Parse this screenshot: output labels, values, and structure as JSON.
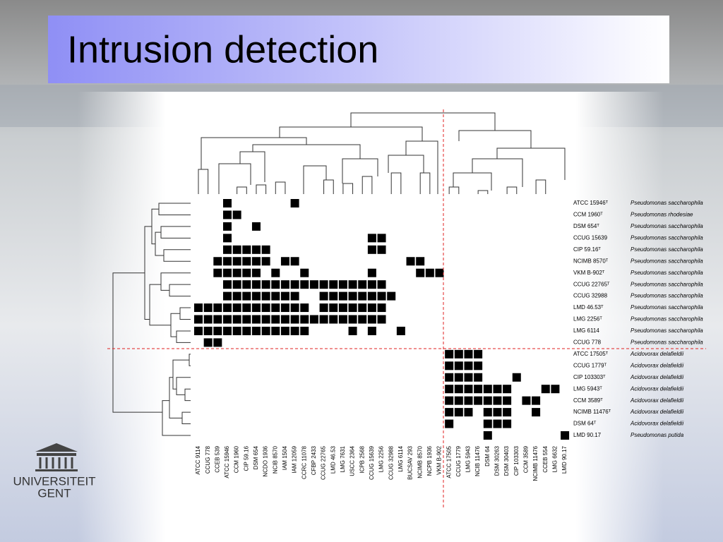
{
  "title": "Intrusion detection",
  "logo": [
    "UNIVERSITEIT",
    "GENT"
  ],
  "chart_data": {
    "type": "heatmap",
    "color": "#000000",
    "rows": [
      "ATCC 15946ᵀ",
      "CCM 1960ᵀ",
      "DSM 654ᵀ",
      "CCUG 15639",
      "CIP 59.16ᵀ",
      "NCIMB 8570ᵀ",
      "VKM B-902ᵀ",
      "CCUG 22765ᵀ",
      "CCUG 32988",
      "LMD 46.53ᵀ",
      "LMG 2256ᵀ",
      "LMG 6114",
      "CCUG 778",
      "ATCC 17505ᵀ",
      "CCUG 1779ᵀ",
      "CIP 103303ᵀ",
      "LMG 5943ᵀ",
      "CCM 3589ᵀ",
      "NCIMB 11476ᵀ",
      "DSM 64ᵀ",
      "LMD 90.17"
    ],
    "row_species": [
      "Pseudomonas saccharophila",
      "Pseudomonas rhodesiae",
      "Pseudomonas saccharophila",
      "Pseudomonas saccharophila",
      "Pseudomonas saccharophila",
      "Pseudomonas saccharophila",
      "Pseudomonas saccharophila",
      "Pseudomonas saccharophila",
      "Pseudomonas saccharophila",
      "Pseudomonas saccharophila",
      "Pseudomonas saccharophila",
      "Pseudomonas saccharophila",
      "Pseudomonas saccharophila",
      "Acidovorax delafieldii",
      "Acidovorax delafieldii",
      "Acidovorax delafieldii",
      "Acidovorax delafieldii",
      "Acidovorax delafieldii",
      "Acidovorax delafieldii",
      "Acidovorax delafieldii",
      "Pseudomonas putida"
    ],
    "columns": [
      "ATCC 9114",
      "CCUG 778",
      "CCEB 539",
      "ATCC 15946",
      "CCM 1960",
      "CIP 59.16",
      "DSM 654",
      "NCDO 1936",
      "NCIB 8570",
      "IAM 1504",
      "IAM 12059",
      "CCRC 11078",
      "CFBP 2433",
      "CCUG 22765",
      "LMD 46.53",
      "LMG 7631",
      "USCC 2364",
      "ICPB 2568",
      "CCUG 15639",
      "LMG 2256",
      "CCUG 32988",
      "LMG 6114",
      "BUCSAV 293",
      "NCIMB 8570",
      "NCPB 1936",
      "VKM B-902",
      "ATCC 17505",
      "CCUG 1779",
      "LMG 5943",
      "NCIB 11476",
      "DSM 64",
      "DSM 30263",
      "DSM 30403",
      "CIP 103303",
      "CCM 3589",
      "NCIMB 11476",
      "CCEB 554",
      "LMG 6632",
      "LMD 90.17"
    ],
    "values": [
      [
        0,
        0,
        0,
        1,
        0,
        0,
        0,
        0,
        0,
        0,
        1,
        0,
        0,
        0,
        0,
        0,
        0,
        0,
        0,
        0,
        0,
        0,
        0,
        0,
        0,
        0,
        0,
        0,
        0,
        0,
        0,
        0,
        0,
        0,
        0,
        0,
        0,
        0,
        0
      ],
      [
        0,
        0,
        0,
        1,
        1,
        0,
        0,
        0,
        0,
        0,
        0,
        0,
        0,
        0,
        0,
        0,
        0,
        0,
        0,
        0,
        0,
        0,
        0,
        0,
        0,
        0,
        0,
        0,
        0,
        0,
        0,
        0,
        0,
        0,
        0,
        0,
        0,
        0,
        0
      ],
      [
        0,
        0,
        0,
        1,
        0,
        0,
        1,
        0,
        0,
        0,
        0,
        0,
        0,
        0,
        0,
        0,
        0,
        0,
        0,
        0,
        0,
        0,
        0,
        0,
        0,
        0,
        0,
        0,
        0,
        0,
        0,
        0,
        0,
        0,
        0,
        0,
        0,
        0,
        0
      ],
      [
        0,
        0,
        0,
        1,
        0,
        0,
        0,
        0,
        0,
        0,
        0,
        0,
        0,
        0,
        0,
        0,
        0,
        0,
        1,
        1,
        0,
        0,
        0,
        0,
        0,
        0,
        0,
        0,
        0,
        0,
        0,
        0,
        0,
        0,
        0,
        0,
        0,
        0,
        0
      ],
      [
        0,
        0,
        0,
        1,
        1,
        1,
        1,
        1,
        0,
        0,
        0,
        0,
        0,
        0,
        0,
        0,
        0,
        0,
        1,
        1,
        0,
        0,
        0,
        0,
        0,
        0,
        0,
        0,
        0,
        0,
        0,
        0,
        0,
        0,
        0,
        0,
        0,
        0,
        0
      ],
      [
        0,
        0,
        1,
        1,
        1,
        1,
        1,
        1,
        0,
        1,
        1,
        0,
        0,
        0,
        0,
        0,
        0,
        0,
        0,
        0,
        0,
        0,
        1,
        1,
        0,
        0,
        0,
        0,
        0,
        0,
        0,
        0,
        0,
        0,
        0,
        0,
        0,
        0,
        0
      ],
      [
        0,
        0,
        1,
        1,
        1,
        1,
        1,
        0,
        1,
        0,
        0,
        1,
        0,
        0,
        0,
        0,
        0,
        0,
        1,
        0,
        0,
        0,
        0,
        1,
        1,
        1,
        0,
        0,
        0,
        0,
        0,
        0,
        0,
        0,
        0,
        0,
        0,
        0,
        0
      ],
      [
        0,
        0,
        0,
        1,
        1,
        1,
        1,
        1,
        1,
        1,
        1,
        1,
        1,
        1,
        1,
        1,
        1,
        1,
        1,
        1,
        0,
        0,
        0,
        0,
        0,
        0,
        0,
        0,
        0,
        0,
        0,
        0,
        0,
        0,
        0,
        0,
        0,
        0,
        0
      ],
      [
        0,
        0,
        0,
        1,
        1,
        1,
        1,
        1,
        1,
        1,
        1,
        0,
        0,
        1,
        1,
        1,
        1,
        1,
        1,
        1,
        1,
        0,
        0,
        0,
        0,
        0,
        0,
        0,
        0,
        0,
        0,
        0,
        0,
        0,
        0,
        0,
        0,
        0,
        0
      ],
      [
        1,
        1,
        1,
        1,
        1,
        1,
        1,
        1,
        1,
        1,
        1,
        1,
        0,
        1,
        1,
        1,
        1,
        1,
        1,
        1,
        0,
        0,
        0,
        0,
        0,
        0,
        0,
        0,
        0,
        0,
        0,
        0,
        0,
        0,
        0,
        0,
        0,
        0,
        0
      ],
      [
        1,
        1,
        1,
        1,
        1,
        1,
        1,
        1,
        1,
        1,
        1,
        1,
        1,
        1,
        1,
        1,
        1,
        1,
        1,
        1,
        0,
        0,
        0,
        0,
        0,
        0,
        0,
        0,
        0,
        0,
        0,
        0,
        0,
        0,
        0,
        0,
        0,
        0,
        0
      ],
      [
        1,
        1,
        1,
        1,
        1,
        1,
        1,
        1,
        1,
        1,
        1,
        1,
        0,
        0,
        0,
        0,
        1,
        0,
        1,
        0,
        0,
        1,
        0,
        0,
        0,
        0,
        0,
        0,
        0,
        0,
        0,
        0,
        0,
        0,
        0,
        0,
        0,
        0,
        0
      ],
      [
        0,
        1,
        1,
        0,
        0,
        0,
        0,
        0,
        0,
        0,
        0,
        0,
        0,
        0,
        0,
        0,
        0,
        0,
        0,
        0,
        0,
        0,
        0,
        0,
        0,
        0,
        0,
        0,
        0,
        0,
        0,
        0,
        0,
        0,
        0,
        0,
        0,
        0,
        0
      ],
      [
        0,
        0,
        0,
        0,
        0,
        0,
        0,
        0,
        0,
        0,
        0,
        0,
        0,
        0,
        0,
        0,
        0,
        0,
        0,
        0,
        0,
        0,
        0,
        0,
        0,
        0,
        1,
        1,
        1,
        1,
        0,
        0,
        0,
        0,
        0,
        0,
        0,
        0,
        0
      ],
      [
        0,
        0,
        0,
        0,
        0,
        0,
        0,
        0,
        0,
        0,
        0,
        0,
        0,
        0,
        0,
        0,
        0,
        0,
        0,
        0,
        0,
        0,
        0,
        0,
        0,
        0,
        1,
        1,
        1,
        1,
        0,
        0,
        0,
        0,
        0,
        0,
        0,
        0,
        0
      ],
      [
        0,
        0,
        0,
        0,
        0,
        0,
        0,
        0,
        0,
        0,
        0,
        0,
        0,
        0,
        0,
        0,
        0,
        0,
        0,
        0,
        0,
        0,
        0,
        0,
        0,
        0,
        1,
        1,
        1,
        1,
        0,
        0,
        0,
        1,
        0,
        0,
        0,
        0,
        0
      ],
      [
        0,
        0,
        0,
        0,
        0,
        0,
        0,
        0,
        0,
        0,
        0,
        0,
        0,
        0,
        0,
        0,
        0,
        0,
        0,
        0,
        0,
        0,
        0,
        0,
        0,
        0,
        1,
        1,
        1,
        1,
        1,
        1,
        1,
        0,
        0,
        0,
        1,
        1,
        0
      ],
      [
        0,
        0,
        0,
        0,
        0,
        0,
        0,
        0,
        0,
        0,
        0,
        0,
        0,
        0,
        0,
        0,
        0,
        0,
        0,
        0,
        0,
        0,
        0,
        0,
        0,
        0,
        1,
        1,
        1,
        1,
        1,
        1,
        1,
        0,
        1,
        1,
        0,
        0,
        0
      ],
      [
        0,
        0,
        0,
        0,
        0,
        0,
        0,
        0,
        0,
        0,
        0,
        0,
        0,
        0,
        0,
        0,
        0,
        0,
        0,
        0,
        0,
        0,
        0,
        0,
        0,
        0,
        1,
        1,
        1,
        0,
        1,
        1,
        1,
        0,
        0,
        1,
        0,
        0,
        0
      ],
      [
        0,
        0,
        0,
        0,
        0,
        0,
        0,
        0,
        0,
        0,
        0,
        0,
        0,
        0,
        0,
        0,
        0,
        0,
        0,
        0,
        0,
        0,
        0,
        0,
        0,
        0,
        1,
        0,
        0,
        0,
        1,
        1,
        1,
        0,
        0,
        0,
        0,
        0,
        0
      ],
      [
        0,
        0,
        0,
        0,
        0,
        0,
        0,
        0,
        0,
        0,
        0,
        0,
        0,
        0,
        0,
        0,
        0,
        0,
        0,
        0,
        0,
        0,
        0,
        0,
        0,
        0,
        0,
        0,
        0,
        0,
        1,
        0,
        0,
        0,
        0,
        0,
        0,
        0,
        1
      ]
    ]
  }
}
